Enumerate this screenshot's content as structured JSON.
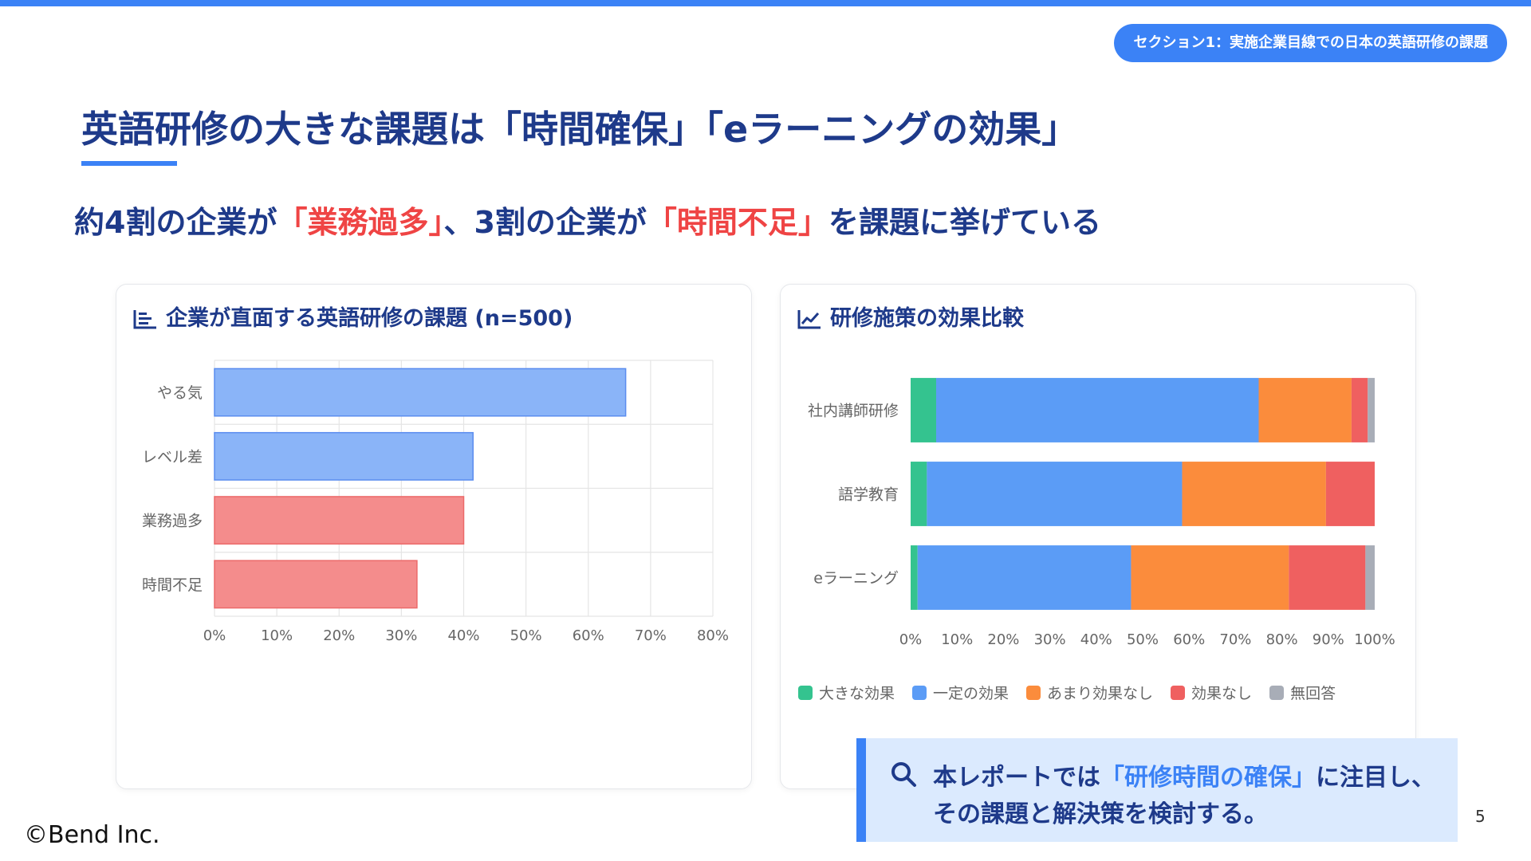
{
  "section_badge": "セクション1：実施企業目線での日本の英語研修の課題",
  "title": "英語研修の大きな課題は「時間確保」「eラーニングの効果」",
  "subtitle": {
    "p1": "約4割の企業が",
    "h1": "「業務過多」",
    "p2": "、3割の企業が",
    "h2": "「時間不足」",
    "p3": "を課題に挙げている"
  },
  "card1": {
    "title": "企業が直面する英語研修の課題 (n=500)",
    "icon": "bar-chart-icon"
  },
  "card2": {
    "title": "研修施策の効果比較",
    "icon": "line-chart-icon"
  },
  "chart_data": [
    {
      "type": "bar",
      "orientation": "horizontal",
      "title": "企業が直面する英語研修の課題 (n=500)",
      "categories": [
        "やる気",
        "レベル差",
        "業務過多",
        "時間不足"
      ],
      "values": [
        66,
        41.5,
        40,
        32.5
      ],
      "colors": [
        "#8ab4f8",
        "#8ab4f8",
        "#f48c8c",
        "#f48c8c"
      ],
      "border_colors": [
        "#5b8def",
        "#5b8def",
        "#ec6a6a",
        "#ec6a6a"
      ],
      "xlim": [
        0,
        80
      ],
      "ticks": [
        0,
        10,
        20,
        30,
        40,
        50,
        60,
        70,
        80
      ],
      "tick_suffix": "%",
      "grid": true
    },
    {
      "type": "bar",
      "orientation": "horizontal",
      "stacked": true,
      "title": "研修施策の効果比較",
      "categories": [
        "社内講師研修",
        "語学教育",
        "eラーニング"
      ],
      "series": [
        {
          "name": "大きな効果",
          "color": "#34c38f",
          "values": [
            5.5,
            3.5,
            1.5
          ]
        },
        {
          "name": "一定の効果",
          "color": "#5b9cf6",
          "values": [
            69.5,
            55,
            46
          ]
        },
        {
          "name": "あまり効果なし",
          "color": "#fb8c3c",
          "values": [
            20,
            31,
            34
          ]
        },
        {
          "name": "効果なし",
          "color": "#ef6060",
          "values": [
            3.5,
            10.5,
            16.5
          ]
        },
        {
          "name": "無回答",
          "color": "#a8adb7",
          "values": [
            1.5,
            0,
            2
          ]
        }
      ],
      "xlim": [
        0,
        100
      ],
      "ticks": [
        0,
        10,
        20,
        30,
        40,
        50,
        60,
        70,
        80,
        90,
        100
      ],
      "tick_suffix": "%",
      "legend_position": "bottom"
    }
  ],
  "callout": {
    "icon": "search-icon",
    "line1_a": "本レポートでは",
    "line1_b": "「研修時間の確保」",
    "line1_c": "に注目し、",
    "line2": "その課題と解決策を検討する。"
  },
  "page_number": "5",
  "copyright": "©Bend Inc."
}
